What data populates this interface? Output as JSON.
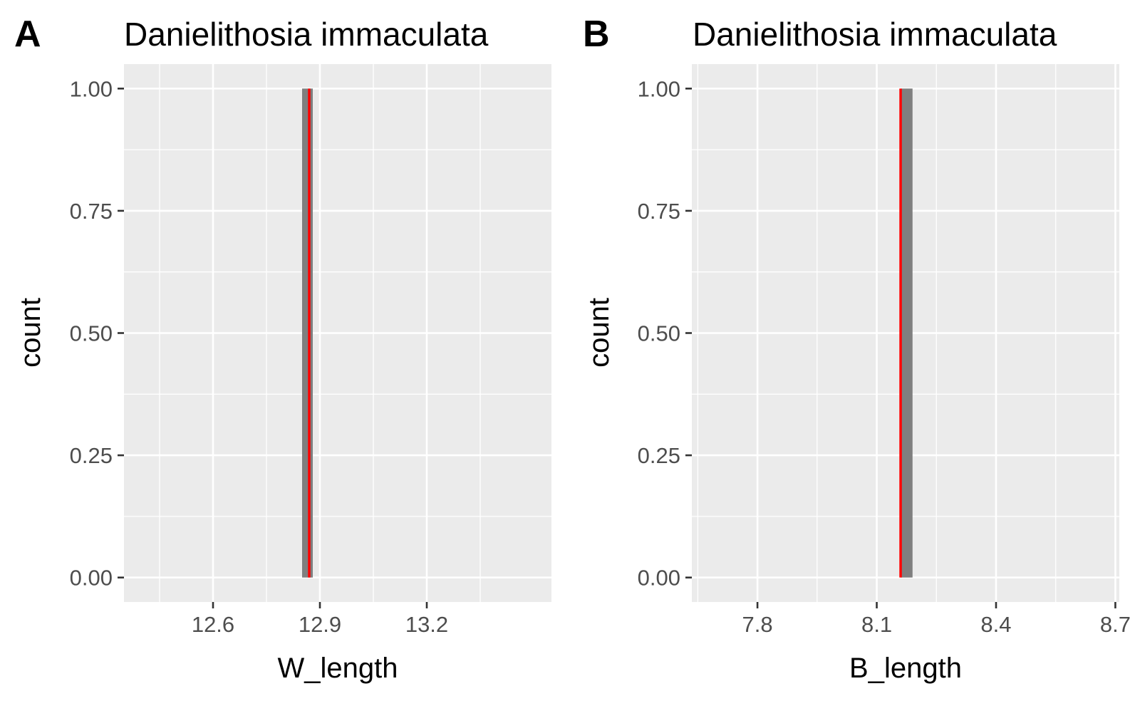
{
  "chart_data": [
    {
      "type": "bar",
      "panel_label": "A",
      "title": "Danielithosia immaculata",
      "xlabel": "W_length",
      "ylabel": "count",
      "xlim": [
        12.35,
        13.55
      ],
      "ylim": [
        -0.05,
        1.05
      ],
      "x_ticks": [
        12.6,
        12.9,
        13.2
      ],
      "x_tick_labels": [
        "12.6",
        "12.9",
        "13.2"
      ],
      "y_ticks": [
        0,
        0.25,
        0.5,
        0.75,
        1
      ],
      "y_tick_labels": [
        "0.00",
        "0.25",
        "0.50",
        "0.75",
        "1.00"
      ],
      "bars": [
        {
          "xmin": 12.85,
          "xmax": 12.88,
          "count": 1
        }
      ],
      "vline": {
        "x": 12.87,
        "color": "#ff0000"
      },
      "grid": true
    },
    {
      "type": "bar",
      "panel_label": "B",
      "title": "Danielithosia immaculata",
      "xlabel": "B_length",
      "ylabel": "count",
      "xlim": [
        7.635,
        8.71
      ],
      "ylim": [
        -0.05,
        1.05
      ],
      "x_ticks": [
        7.8,
        8.1,
        8.4,
        8.7
      ],
      "x_tick_labels": [
        "7.8",
        "8.1",
        "8.4",
        "8.7"
      ],
      "y_ticks": [
        0,
        0.25,
        0.5,
        0.75,
        1
      ],
      "y_tick_labels": [
        "0.00",
        "0.25",
        "0.50",
        "0.75",
        "1.00"
      ],
      "bars": [
        {
          "xmin": 8.16,
          "xmax": 8.19,
          "count": 1
        }
      ],
      "vline": {
        "x": 8.16,
        "color": "#ff0000"
      },
      "grid": true
    }
  ]
}
